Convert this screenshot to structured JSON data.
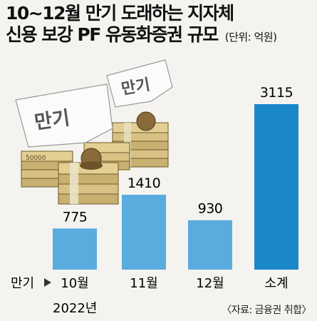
{
  "title_line1": "10~12월 만기 도래하는 지자체",
  "title_line2": "신용 보강 PF 유동화증권 규모",
  "unit": "(단위: 억원)",
  "axis_prefix": "만기",
  "year_label": "2022년",
  "illustration_text": [
    "만기",
    "만기"
  ],
  "banknote_text": "50000",
  "source": "〈자료: 금융권 취합〉",
  "colors": {
    "bar_light": "#5aacde",
    "bar_total": "#1a87c9",
    "background": "#f4f3ef"
  },
  "chart_data": {
    "type": "bar",
    "categories": [
      "10월",
      "11월",
      "12월",
      "소계"
    ],
    "values": [
      775,
      1410,
      930,
      3115
    ],
    "value_labels": [
      "775",
      "1410",
      "930",
      "3115"
    ],
    "title": "10~12월 만기 도래하는 지자체 신용 보강 PF 유동화증권 규모",
    "ylabel": "",
    "xlabel": "",
    "ylim": [
      0,
      3115
    ],
    "grid": false,
    "legend": "none"
  }
}
